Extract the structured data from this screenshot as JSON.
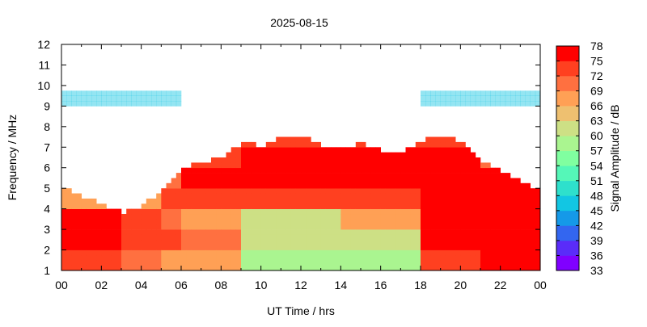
{
  "chart_data": {
    "type": "heatmap",
    "title": "2025-08-15",
    "xlabel": "UT Time / hrs",
    "ylabel": "Frequency / MHz",
    "colorbar_label": "Signal Amplitude / dB",
    "xlim": [
      0,
      24
    ],
    "ylim": [
      1,
      12
    ],
    "x_tick_labels": [
      "00",
      "02",
      "04",
      "06",
      "08",
      "10",
      "12",
      "14",
      "16",
      "18",
      "20",
      "22",
      "00"
    ],
    "y_tick_labels": [
      "1",
      "2",
      "3",
      "4",
      "5",
      "6",
      "7",
      "8",
      "9",
      "10",
      "11",
      "12"
    ],
    "colorbar_ticks": [
      "33",
      "36",
      "39",
      "42",
      "45",
      "48",
      "51",
      "54",
      "57",
      "60",
      "63",
      "66",
      "69",
      "72",
      "75",
      "78"
    ],
    "colorbar_range": [
      33,
      78
    ],
    "colorbar_colors": [
      "#8000ff",
      "#5a2cf9",
      "#3366f0",
      "#1599e8",
      "#12c6e3",
      "#2ee0cc",
      "#55f7b8",
      "#80ffa0",
      "#aaf590",
      "#cde085",
      "#eec070",
      "#ffa055",
      "#ff7040",
      "#ff4020",
      "#ff0000"
    ],
    "grid": false,
    "hours": [
      0,
      1,
      2,
      3,
      4,
      5,
      6,
      7,
      8,
      9,
      10,
      11,
      12,
      13,
      14,
      15,
      16,
      17,
      18,
      19,
      20,
      21,
      22,
      23
    ],
    "frequency_bins_mhz": [
      "1-2",
      "2-3",
      "3-4",
      "4-5",
      "5-6",
      "6-7",
      "7-8",
      "8-9",
      "9-10",
      "10-11",
      "11-12"
    ],
    "upper_edge_mhz": [
      5.0,
      4.6,
      4.2,
      3.8,
      4.2,
      5.0,
      6.1,
      6.2,
      6.6,
      7.3,
      7.0,
      7.5,
      7.6,
      7.0,
      7.0,
      7.2,
      6.8,
      6.8,
      7.3,
      7.6,
      7.2,
      6.3,
      5.8,
      5.3,
      4.9
    ],
    "amplitude_db": [
      [
        72,
        77,
        77,
        66,
        60,
        null,
        null,
        null,
        47,
        null,
        null
      ],
      [
        72,
        77,
        77,
        66,
        60,
        null,
        null,
        null,
        47,
        null,
        null
      ],
      [
        72,
        77,
        76,
        66,
        60,
        null,
        null,
        null,
        47,
        null,
        null
      ],
      [
        70,
        74,
        72,
        66,
        null,
        null,
        null,
        null,
        47,
        null,
        null
      ],
      [
        70,
        74,
        72,
        66,
        null,
        null,
        null,
        null,
        47,
        null,
        null
      ],
      [
        68,
        72,
        70,
        72,
        70,
        null,
        null,
        null,
        47,
        null,
        null
      ],
      [
        66,
        70,
        66,
        74,
        76,
        72,
        null,
        null,
        null,
        null,
        null
      ],
      [
        66,
        70,
        66,
        74,
        76,
        72,
        null,
        null,
        null,
        null,
        null
      ],
      [
        66,
        70,
        66,
        74,
        76,
        72,
        null,
        null,
        null,
        null,
        null
      ],
      [
        58,
        60,
        62,
        72,
        77,
        76,
        74,
        null,
        null,
        null,
        null
      ],
      [
        58,
        60,
        62,
        72,
        77,
        76,
        74,
        null,
        null,
        null,
        null
      ],
      [
        58,
        60,
        62,
        72,
        77,
        76,
        74,
        null,
        null,
        null,
        null
      ],
      [
        58,
        60,
        62,
        72,
        77,
        76,
        74,
        null,
        null,
        null,
        null
      ],
      [
        58,
        60,
        62,
        72,
        77,
        76,
        74,
        null,
        null,
        null,
        null
      ],
      [
        58,
        60,
        66,
        74,
        77,
        76,
        72,
        null,
        null,
        null,
        null
      ],
      [
        58,
        60,
        66,
        74,
        77,
        76,
        72,
        null,
        null,
        null,
        null
      ],
      [
        58,
        60,
        66,
        74,
        77,
        76,
        72,
        null,
        null,
        null,
        null
      ],
      [
        58,
        60,
        66,
        74,
        77,
        76,
        72,
        null,
        null,
        null,
        null
      ],
      [
        74,
        76,
        77,
        77,
        77,
        77,
        74,
        null,
        47,
        null,
        null
      ],
      [
        74,
        76,
        77,
        77,
        77,
        77,
        74,
        null,
        47,
        null,
        null
      ],
      [
        74,
        76,
        77,
        77,
        77,
        77,
        74,
        null,
        47,
        null,
        null
      ],
      [
        76,
        77,
        77,
        77,
        77,
        70,
        null,
        null,
        47,
        null,
        null
      ],
      [
        76,
        77,
        77,
        77,
        77,
        70,
        null,
        null,
        47,
        null,
        null
      ],
      [
        76,
        77,
        77,
        77,
        77,
        70,
        null,
        null,
        47,
        null,
        null
      ]
    ]
  }
}
